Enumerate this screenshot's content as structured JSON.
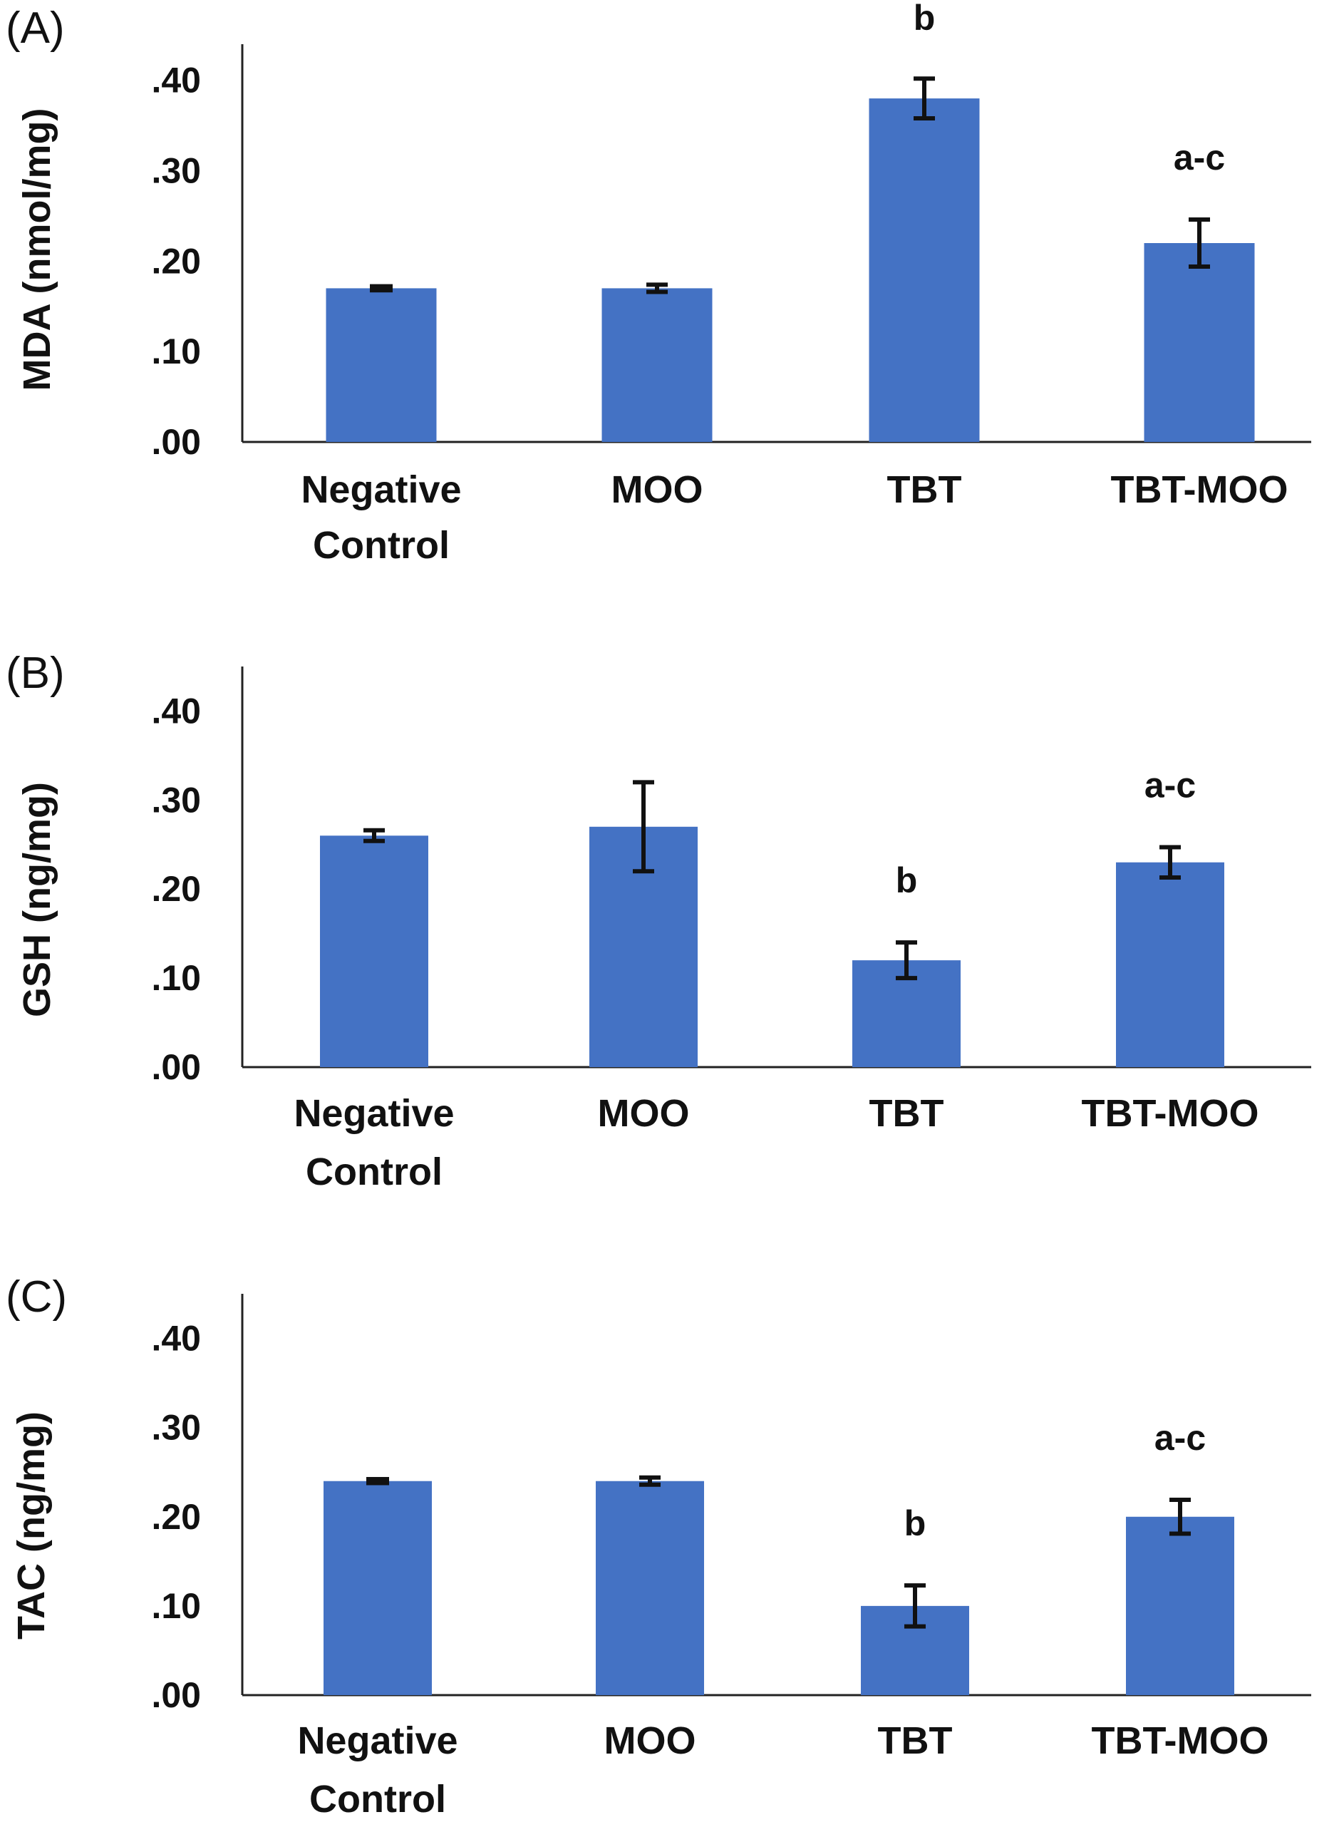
{
  "chart_data": [
    {
      "type": "bar",
      "panel_label": "(A)",
      "ylabel": "MDA (nmol/mg)",
      "categories": [
        [
          "Negative",
          "Control"
        ],
        [
          "MOO"
        ],
        [
          "TBT"
        ],
        [
          "TBT-MOO"
        ]
      ],
      "values": [
        0.17,
        0.17,
        0.38,
        0.22
      ],
      "errors": [
        0.003,
        0.004,
        0.022,
        0.026
      ],
      "annotations": [
        "",
        "",
        "b",
        "a-c"
      ],
      "yticks": [
        ".00",
        ".10",
        ".20",
        ".30",
        ".40"
      ],
      "ylim": [
        0,
        0.44
      ],
      "grid": false,
      "bar_color": "#4472C4"
    },
    {
      "type": "bar",
      "panel_label": "(B)",
      "ylabel": "GSH (ng/mg)",
      "categories": [
        [
          "Negative",
          "Control"
        ],
        [
          "MOO"
        ],
        [
          "TBT"
        ],
        [
          "TBT-MOO"
        ]
      ],
      "values": [
        0.26,
        0.27,
        0.12,
        0.23
      ],
      "errors": [
        0.006,
        0.05,
        0.02,
        0.017
      ],
      "annotations": [
        "",
        "",
        "b",
        "a-c"
      ],
      "yticks": [
        ".00",
        ".10",
        ".20",
        ".30",
        ".40"
      ],
      "ylim": [
        0,
        0.45
      ],
      "grid": false,
      "bar_color": "#4472C4"
    },
    {
      "type": "bar",
      "panel_label": "(C)",
      "ylabel": "TAC (ng/mg)",
      "categories": [
        [
          "Negative",
          "Control"
        ],
        [
          "MOO"
        ],
        [
          "TBT"
        ],
        [
          "TBT-MOO"
        ]
      ],
      "values": [
        0.24,
        0.24,
        0.1,
        0.2
      ],
      "errors": [
        0.003,
        0.004,
        0.023,
        0.019
      ],
      "annotations": [
        "",
        "",
        "b",
        "a-c"
      ],
      "yticks": [
        ".00",
        ".10",
        ".20",
        ".30",
        ".40"
      ],
      "ylim": [
        0,
        0.45
      ],
      "grid": false,
      "bar_color": "#4472C4"
    }
  ]
}
